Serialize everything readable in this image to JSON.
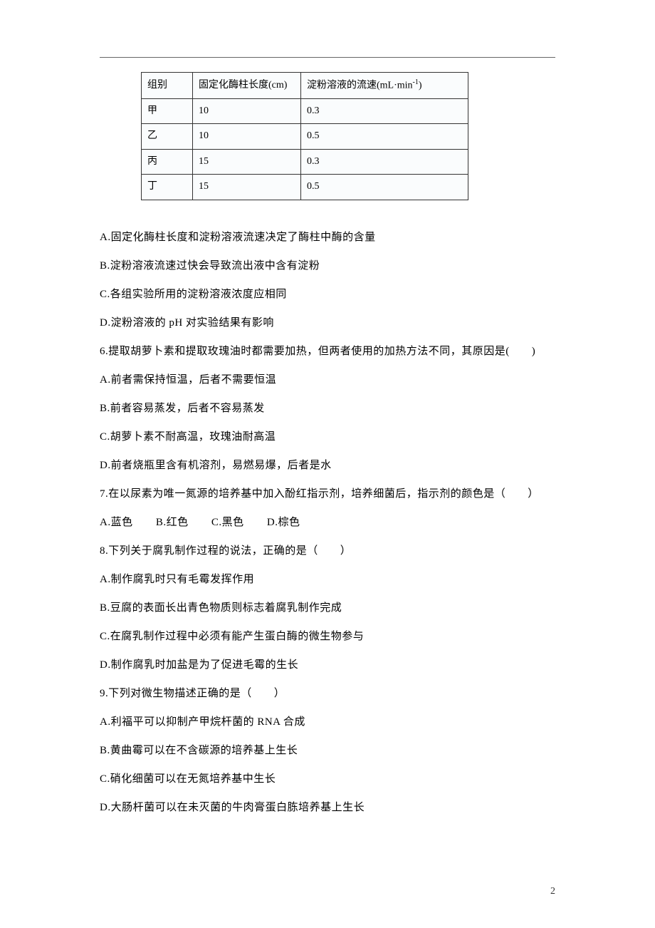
{
  "table": {
    "headers": [
      "组别",
      "固定化酶柱长度(cm)",
      "淀粉溶液的流速(mL·min⁻¹)"
    ],
    "rows": [
      [
        "甲",
        "10",
        "0.3"
      ],
      [
        "乙",
        "10",
        "0.5"
      ],
      [
        "丙",
        "15",
        "0.3"
      ],
      [
        "丁",
        "15",
        "0.5"
      ]
    ]
  },
  "q5_options": {
    "a": "A.固定化酶柱长度和淀粉溶液流速决定了酶柱中酶的含量",
    "b": "B.淀粉溶液流速过快会导致流出液中含有淀粉",
    "c": "C.各组实验所用的淀粉溶液浓度应相同",
    "d": "D.淀粉溶液的 pH 对实验结果有影响"
  },
  "q6": {
    "stem": "6.提取胡萝卜素和提取玫瑰油时都需要加热，但两者使用的加热方法不同，其原因是(　　)",
    "a": "A.前者需保持恒温，后者不需要恒温",
    "b": "B.前者容易蒸发，后者不容易蒸发",
    "c": "C.胡萝卜素不耐高温，玫瑰油耐高温",
    "d": "D.前者烧瓶里含有机溶剂，易燃易爆，后者是水"
  },
  "q7": {
    "stem": "7.在以尿素为唯一氮源的培养基中加入酚红指示剂，培养细菌后，指示剂的颜色是（　　）",
    "a": "A.蓝色",
    "b": "B.红色",
    "c": "C.黑色",
    "d": "D.棕色"
  },
  "q8": {
    "stem": "8.下列关于腐乳制作过程的说法，正确的是（　　）",
    "a": "A.制作腐乳时只有毛霉发挥作用",
    "b": "B.豆腐的表面长出青色物质则标志着腐乳制作完成",
    "c": "C.在腐乳制作过程中必须有能产生蛋白酶的微生物参与",
    "d": "D.制作腐乳时加盐是为了促进毛霉的生长"
  },
  "q9": {
    "stem": "9.下列对微生物描述正确的是（　　）",
    "a": "A.利福平可以抑制产甲烷杆菌的 RNA 合成",
    "b": "B.黄曲霉可以在不含碳源的培养基上生长",
    "c": "C.硝化细菌可以在无氮培养基中生长",
    "d": "D.大肠杆菌可以在未灭菌的牛肉膏蛋白胨培养基上生长"
  },
  "page_number": "2",
  "table_header_unit": {
    "prefix": "淀粉溶液的流速(mL·min",
    "exp": "-1",
    "suffix": ")"
  }
}
